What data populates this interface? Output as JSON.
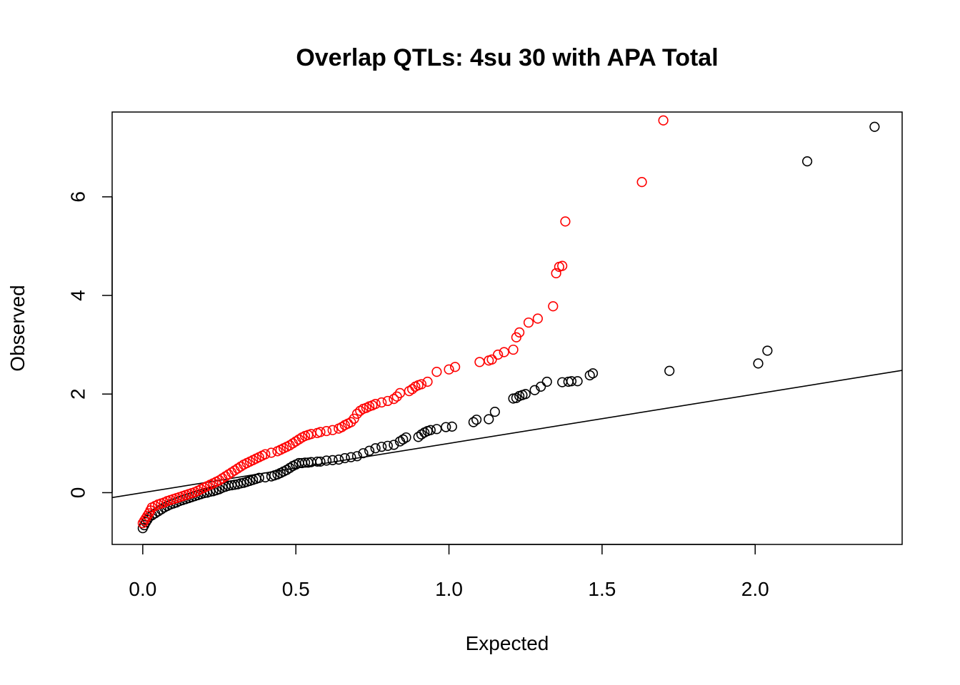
{
  "chart_data": {
    "type": "scatter",
    "title": "Overlap QTLs: 4su 30 with APA Total",
    "xlabel": "Expected",
    "ylabel": "Observed",
    "xlim": [
      -0.1,
      2.48
    ],
    "ylim": [
      -1.05,
      7.72
    ],
    "x_ticks": [
      0.0,
      0.5,
      1.0,
      1.5,
      2.0
    ],
    "x_tick_labels": [
      "0.0",
      "0.5",
      "1.0",
      "1.5",
      "2.0"
    ],
    "y_ticks": [
      0,
      2,
      4,
      6
    ],
    "y_tick_labels": [
      "0",
      "2",
      "4",
      "6"
    ],
    "grid": false,
    "legend": "none",
    "reference_line": {
      "intercept": 0,
      "slope": 1,
      "color": "#000000"
    },
    "series": [
      {
        "color": "#000000",
        "marker": "open-circle",
        "points": [
          [
            0.0,
            -0.72
          ],
          [
            0.005,
            -0.66
          ],
          [
            0.01,
            -0.6
          ],
          [
            0.015,
            -0.55
          ],
          [
            0.02,
            -0.5
          ],
          [
            0.03,
            -0.46
          ],
          [
            0.04,
            -0.42
          ],
          [
            0.05,
            -0.38
          ],
          [
            0.06,
            -0.34
          ],
          [
            0.07,
            -0.3
          ],
          [
            0.08,
            -0.27
          ],
          [
            0.09,
            -0.24
          ],
          [
            0.1,
            -0.22
          ],
          [
            0.11,
            -0.2
          ],
          [
            0.12,
            -0.17
          ],
          [
            0.13,
            -0.15
          ],
          [
            0.14,
            -0.13
          ],
          [
            0.15,
            -0.11
          ],
          [
            0.16,
            -0.09
          ],
          [
            0.17,
            -0.07
          ],
          [
            0.18,
            -0.05
          ],
          [
            0.19,
            -0.03
          ],
          [
            0.2,
            -0.01
          ],
          [
            0.21,
            0.0
          ],
          [
            0.22,
            0.02
          ],
          [
            0.23,
            0.03
          ],
          [
            0.24,
            0.05
          ],
          [
            0.25,
            0.07
          ],
          [
            0.26,
            0.1
          ],
          [
            0.27,
            0.12
          ],
          [
            0.28,
            0.14
          ],
          [
            0.29,
            0.15
          ],
          [
            0.3,
            0.16
          ],
          [
            0.31,
            0.17
          ],
          [
            0.32,
            0.19
          ],
          [
            0.33,
            0.2
          ],
          [
            0.34,
            0.22
          ],
          [
            0.35,
            0.24
          ],
          [
            0.36,
            0.26
          ],
          [
            0.37,
            0.28
          ],
          [
            0.38,
            0.3
          ],
          [
            0.4,
            0.31
          ],
          [
            0.42,
            0.33
          ],
          [
            0.43,
            0.35
          ],
          [
            0.44,
            0.37
          ],
          [
            0.45,
            0.4
          ],
          [
            0.46,
            0.43
          ],
          [
            0.47,
            0.46
          ],
          [
            0.48,
            0.5
          ],
          [
            0.49,
            0.54
          ],
          [
            0.5,
            0.57
          ],
          [
            0.51,
            0.6
          ],
          [
            0.52,
            0.6
          ],
          [
            0.53,
            0.61
          ],
          [
            0.54,
            0.61
          ],
          [
            0.55,
            0.62
          ],
          [
            0.57,
            0.63
          ],
          [
            0.58,
            0.63
          ],
          [
            0.6,
            0.65
          ],
          [
            0.62,
            0.66
          ],
          [
            0.64,
            0.67
          ],
          [
            0.66,
            0.7
          ],
          [
            0.68,
            0.72
          ],
          [
            0.7,
            0.74
          ],
          [
            0.72,
            0.8
          ],
          [
            0.74,
            0.85
          ],
          [
            0.76,
            0.9
          ],
          [
            0.78,
            0.93
          ],
          [
            0.8,
            0.95
          ],
          [
            0.82,
            0.97
          ],
          [
            0.84,
            1.04
          ],
          [
            0.85,
            1.08
          ],
          [
            0.86,
            1.12
          ],
          [
            0.9,
            1.13
          ],
          [
            0.91,
            1.18
          ],
          [
            0.92,
            1.22
          ],
          [
            0.93,
            1.25
          ],
          [
            0.94,
            1.27
          ],
          [
            0.96,
            1.29
          ],
          [
            0.99,
            1.33
          ],
          [
            1.01,
            1.34
          ],
          [
            1.08,
            1.43
          ],
          [
            1.09,
            1.48
          ],
          [
            1.13,
            1.49
          ],
          [
            1.15,
            1.64
          ],
          [
            1.21,
            1.91
          ],
          [
            1.22,
            1.92
          ],
          [
            1.23,
            1.96
          ],
          [
            1.24,
            1.98
          ],
          [
            1.25,
            2.0
          ],
          [
            1.28,
            2.08
          ],
          [
            1.3,
            2.15
          ],
          [
            1.32,
            2.25
          ],
          [
            1.37,
            2.24
          ],
          [
            1.39,
            2.25
          ],
          [
            1.4,
            2.26
          ],
          [
            1.42,
            2.26
          ],
          [
            1.46,
            2.38
          ],
          [
            1.47,
            2.42
          ],
          [
            1.72,
            2.47
          ],
          [
            2.01,
            2.62
          ],
          [
            2.04,
            2.88
          ],
          [
            2.17,
            6.72
          ],
          [
            2.39,
            7.42
          ]
        ]
      },
      {
        "color": "#ff0000",
        "marker": "open-circle",
        "points": [
          [
            0.0,
            -0.62
          ],
          [
            0.005,
            -0.57
          ],
          [
            0.01,
            -0.52
          ],
          [
            0.015,
            -0.47
          ],
          [
            0.02,
            -0.42
          ],
          [
            0.025,
            -0.36
          ],
          [
            0.03,
            -0.3
          ],
          [
            0.04,
            -0.27
          ],
          [
            0.05,
            -0.24
          ],
          [
            0.06,
            -0.22
          ],
          [
            0.07,
            -0.2
          ],
          [
            0.08,
            -0.17
          ],
          [
            0.09,
            -0.15
          ],
          [
            0.1,
            -0.13
          ],
          [
            0.11,
            -0.11
          ],
          [
            0.12,
            -0.09
          ],
          [
            0.13,
            -0.07
          ],
          [
            0.14,
            -0.05
          ],
          [
            0.15,
            -0.03
          ],
          [
            0.16,
            -0.01
          ],
          [
            0.17,
            0.01
          ],
          [
            0.18,
            0.04
          ],
          [
            0.19,
            0.07
          ],
          [
            0.2,
            0.1
          ],
          [
            0.21,
            0.13
          ],
          [
            0.22,
            0.16
          ],
          [
            0.23,
            0.19
          ],
          [
            0.24,
            0.22
          ],
          [
            0.25,
            0.25
          ],
          [
            0.26,
            0.29
          ],
          [
            0.27,
            0.33
          ],
          [
            0.28,
            0.37
          ],
          [
            0.29,
            0.41
          ],
          [
            0.3,
            0.45
          ],
          [
            0.31,
            0.49
          ],
          [
            0.32,
            0.53
          ],
          [
            0.33,
            0.57
          ],
          [
            0.34,
            0.6
          ],
          [
            0.35,
            0.63
          ],
          [
            0.36,
            0.66
          ],
          [
            0.37,
            0.69
          ],
          [
            0.38,
            0.72
          ],
          [
            0.39,
            0.75
          ],
          [
            0.4,
            0.78
          ],
          [
            0.42,
            0.81
          ],
          [
            0.44,
            0.84
          ],
          [
            0.45,
            0.87
          ],
          [
            0.46,
            0.9
          ],
          [
            0.47,
            0.93
          ],
          [
            0.48,
            0.96
          ],
          [
            0.49,
            1.0
          ],
          [
            0.5,
            1.04
          ],
          [
            0.51,
            1.08
          ],
          [
            0.52,
            1.12
          ],
          [
            0.53,
            1.15
          ],
          [
            0.54,
            1.17
          ],
          [
            0.55,
            1.19
          ],
          [
            0.57,
            1.21
          ],
          [
            0.58,
            1.23
          ],
          [
            0.6,
            1.25
          ],
          [
            0.62,
            1.27
          ],
          [
            0.64,
            1.3
          ],
          [
            0.65,
            1.33
          ],
          [
            0.66,
            1.37
          ],
          [
            0.67,
            1.4
          ],
          [
            0.68,
            1.43
          ],
          [
            0.69,
            1.5
          ],
          [
            0.7,
            1.6
          ],
          [
            0.71,
            1.66
          ],
          [
            0.72,
            1.7
          ],
          [
            0.73,
            1.72
          ],
          [
            0.74,
            1.75
          ],
          [
            0.75,
            1.77
          ],
          [
            0.76,
            1.8
          ],
          [
            0.78,
            1.83
          ],
          [
            0.8,
            1.86
          ],
          [
            0.82,
            1.9
          ],
          [
            0.83,
            1.95
          ],
          [
            0.84,
            2.02
          ],
          [
            0.87,
            2.06
          ],
          [
            0.88,
            2.1
          ],
          [
            0.89,
            2.15
          ],
          [
            0.9,
            2.18
          ],
          [
            0.91,
            2.2
          ],
          [
            0.93,
            2.25
          ],
          [
            0.96,
            2.45
          ],
          [
            1.0,
            2.5
          ],
          [
            1.02,
            2.55
          ],
          [
            1.1,
            2.65
          ],
          [
            1.13,
            2.68
          ],
          [
            1.14,
            2.7
          ],
          [
            1.16,
            2.8
          ],
          [
            1.18,
            2.85
          ],
          [
            1.21,
            2.9
          ],
          [
            1.22,
            3.15
          ],
          [
            1.23,
            3.25
          ],
          [
            1.26,
            3.45
          ],
          [
            1.29,
            3.53
          ],
          [
            1.34,
            3.78
          ],
          [
            1.35,
            4.45
          ],
          [
            1.36,
            4.58
          ],
          [
            1.37,
            4.6
          ],
          [
            1.38,
            5.5
          ],
          [
            1.63,
            6.3
          ],
          [
            1.7,
            7.55
          ]
        ]
      }
    ]
  }
}
